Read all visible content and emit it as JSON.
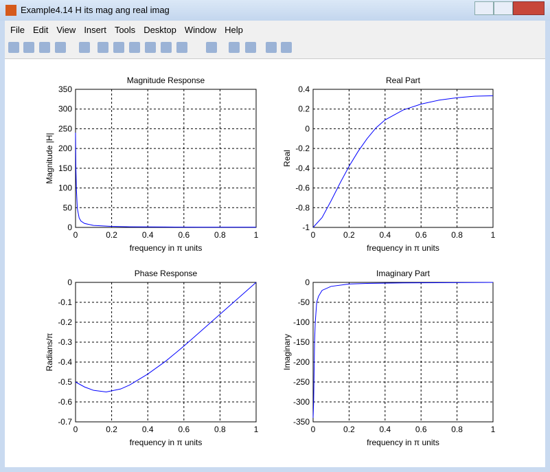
{
  "window": {
    "title": "Example4.14 H its mag ang real imag",
    "menu": [
      "File",
      "Edit",
      "View",
      "Insert",
      "Tools",
      "Desktop",
      "Window",
      "Help"
    ]
  },
  "chart_data": [
    {
      "type": "line",
      "title": "Magnitude Response",
      "xlabel": "frequency in π units",
      "ylabel": "Magnitude  |H|",
      "color": "#0000ff",
      "grid": true,
      "x": [
        0,
        0.002,
        0.005,
        0.01,
        0.02,
        0.03,
        0.05,
        0.1,
        0.2,
        0.3,
        0.5,
        0.7,
        1
      ],
      "values": [
        240,
        150,
        95,
        48,
        24,
        16,
        10,
        5,
        2.5,
        1.6,
        1,
        0.7,
        0.6
      ],
      "xlim": [
        0,
        1
      ],
      "xticks": [
        0,
        0.2,
        0.4,
        0.6,
        0.8,
        1
      ],
      "ylim": [
        0,
        350
      ],
      "yticks": [
        0,
        50,
        100,
        150,
        200,
        250,
        300,
        350
      ]
    },
    {
      "type": "line",
      "title": "Real Part",
      "xlabel": "frequency in π units",
      "ylabel": "Real",
      "color": "#0000ff",
      "grid": true,
      "x": [
        0,
        0.05,
        0.1,
        0.15,
        0.2,
        0.25,
        0.3,
        0.35,
        0.4,
        0.5,
        0.6,
        0.7,
        0.8,
        0.9,
        1
      ],
      "values": [
        -1,
        -0.9,
        -0.73,
        -0.55,
        -0.38,
        -0.23,
        -0.1,
        0.01,
        0.09,
        0.19,
        0.25,
        0.29,
        0.315,
        0.33,
        0.335
      ],
      "xlim": [
        0,
        1
      ],
      "xticks": [
        0,
        0.2,
        0.4,
        0.6,
        0.8,
        1
      ],
      "ylim": [
        -1,
        0.4
      ],
      "yticks": [
        -1,
        -0.8,
        -0.6,
        -0.4,
        -0.2,
        0,
        0.2,
        0.4
      ]
    },
    {
      "type": "line",
      "title": "Phase Response",
      "xlabel": "frequency in π units",
      "ylabel": "Radians/π",
      "color": "#0000ff",
      "grid": true,
      "x": [
        0,
        0.05,
        0.1,
        0.17,
        0.25,
        0.3,
        0.4,
        0.5,
        0.6,
        0.7,
        0.8,
        0.9,
        1
      ],
      "values": [
        -0.5,
        -0.525,
        -0.542,
        -0.55,
        -0.535,
        -0.515,
        -0.46,
        -0.395,
        -0.32,
        -0.24,
        -0.16,
        -0.08,
        0
      ],
      "xlim": [
        0,
        1
      ],
      "xticks": [
        0,
        0.2,
        0.4,
        0.6,
        0.8,
        1
      ],
      "ylim": [
        -0.7,
        0
      ],
      "yticks": [
        -0.7,
        -0.6,
        -0.5,
        -0.4,
        -0.3,
        -0.2,
        -0.1,
        0
      ]
    },
    {
      "type": "line",
      "title": "Imaginary Part",
      "xlabel": "frequency in π units",
      "ylabel": "Imaginary",
      "color": "#0000ff",
      "grid": true,
      "x": [
        0,
        0.003,
        0.005,
        0.008,
        0.012,
        0.02,
        0.03,
        0.05,
        0.1,
        0.2,
        0.3,
        0.5,
        1
      ],
      "values": [
        -340,
        -300,
        -240,
        -150,
        -100,
        -50,
        -35,
        -20,
        -10,
        -4,
        -2.5,
        -1.2,
        0
      ],
      "xlim": [
        0,
        1
      ],
      "xticks": [
        0,
        0.2,
        0.4,
        0.6,
        0.8,
        1
      ],
      "ylim": [
        -350,
        0
      ],
      "yticks": [
        -350,
        -300,
        -250,
        -200,
        -150,
        -100,
        -50,
        0
      ]
    }
  ]
}
